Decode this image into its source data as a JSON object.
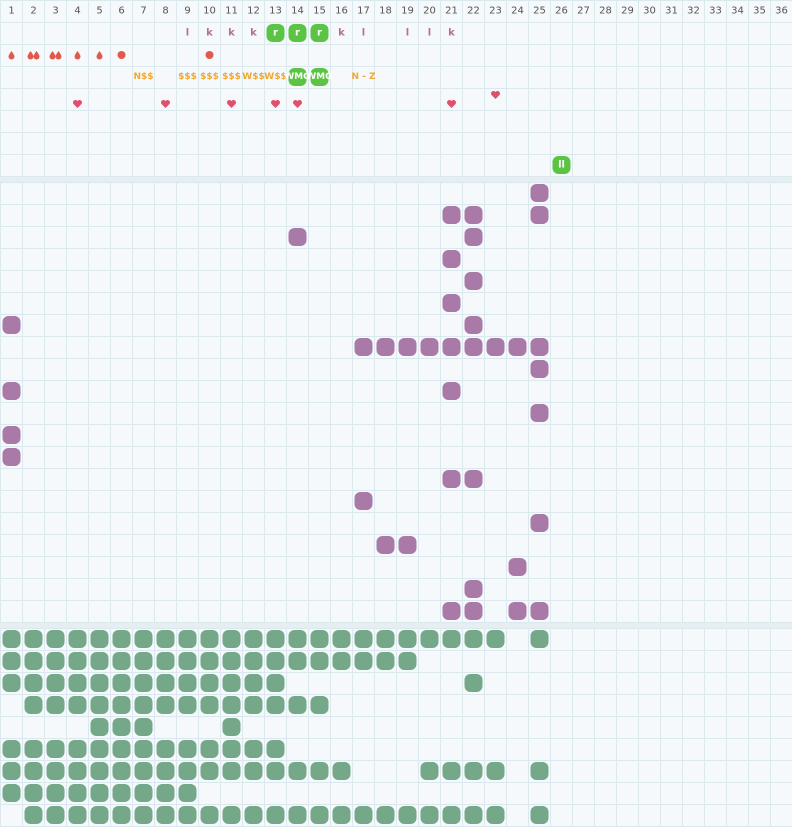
{
  "header": {
    "columns": [
      "1",
      "2",
      "3",
      "4",
      "5",
      "6",
      "7",
      "8",
      "9",
      "10",
      "11",
      "12",
      "13",
      "14",
      "15",
      "16",
      "17",
      "18",
      "19",
      "20",
      "21",
      "22",
      "23",
      "24",
      "25",
      "26",
      "27",
      "28",
      "29",
      "30",
      "31",
      "32",
      "33",
      "34",
      "35",
      "36"
    ]
  },
  "top_rows": [
    [
      null,
      null,
      null,
      null,
      null,
      null,
      null,
      null,
      "l",
      "k",
      "k",
      "k",
      "r",
      "r",
      "r",
      "k",
      "l",
      null,
      "l",
      "l",
      "k",
      null,
      null,
      null,
      null,
      null,
      null,
      null,
      null,
      null,
      null,
      null,
      null,
      null,
      null,
      null
    ],
    [
      null,
      null,
      null,
      null,
      null,
      null,
      "N$$",
      null,
      "$$$",
      "$$$",
      "$$$",
      "W$$",
      "W$$",
      "WMO",
      "WMO",
      null,
      "N - Z",
      null,
      null,
      null,
      null,
      null,
      null,
      null,
      null,
      null,
      null,
      null,
      null,
      null,
      null,
      null,
      null,
      null,
      null,
      null
    ],
    [
      null,
      null,
      null,
      null,
      null,
      null,
      null,
      null,
      null,
      null,
      null,
      null,
      null,
      null,
      null,
      null,
      null,
      null,
      null,
      null,
      null,
      null,
      null,
      null,
      null,
      "ll",
      null,
      null,
      null,
      null,
      null,
      null,
      null,
      null,
      null,
      null
    ]
  ]
}
